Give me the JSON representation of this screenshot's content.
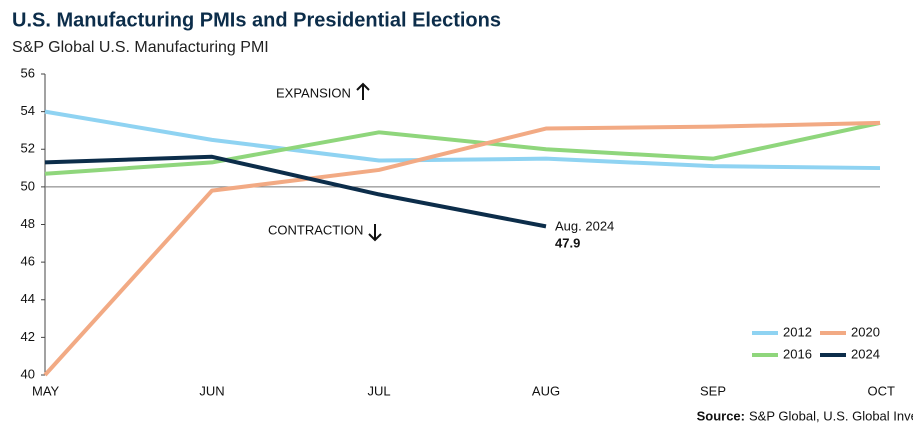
{
  "chart_data": {
    "type": "line",
    "title": "U.S. Manufacturing PMIs and Presidential Elections",
    "subtitle": "S&P Global U.S. Manufacturing PMI",
    "categories": [
      "MAY",
      "JUN",
      "JUL",
      "AUG",
      "SEP",
      "OCT"
    ],
    "series": [
      {
        "name": "2012",
        "color": "#8fd3f2",
        "values": [
          54.0,
          52.5,
          51.4,
          51.5,
          51.1,
          51.0
        ]
      },
      {
        "name": "2016",
        "color": "#8fd67c",
        "values": [
          50.7,
          51.3,
          52.9,
          52.0,
          51.5,
          53.4
        ]
      },
      {
        "name": "2020",
        "color": "#f2aa84",
        "values": [
          40.0,
          49.8,
          50.9,
          53.1,
          53.2,
          53.4
        ]
      },
      {
        "name": "2024",
        "color": "#0c2d4a",
        "values": [
          51.3,
          51.6,
          49.6,
          47.9,
          null,
          null
        ]
      }
    ],
    "ylim": [
      40,
      56
    ],
    "yticks": [
      40,
      42,
      44,
      46,
      48,
      50,
      52,
      54,
      56
    ],
    "reference_line": 50,
    "annotations": {
      "expansion": "EXPANSION",
      "contraction": "CONTRACTION",
      "last_point": "Aug. 2024"
    },
    "legend": "bottom-right",
    "source_label": "Source:",
    "source": "S&P Global, U.S. Global Investors"
  }
}
